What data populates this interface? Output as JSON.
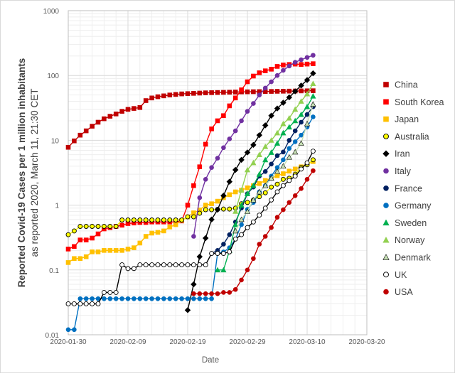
{
  "chart_data": {
    "type": "line",
    "y_scale": "log",
    "ylim": [
      0.01,
      1000
    ],
    "y_ticks": [
      "0.01",
      "0.1",
      "1",
      "10",
      "100",
      "1000"
    ],
    "x_ticks": [
      "2020-01-30",
      "2020-02-09",
      "2020-02-19",
      "2020-02-29",
      "2020-03-10",
      "2020-03-20"
    ],
    "xlim_days": [
      0,
      50
    ],
    "x_start_date": "2020-01-30",
    "xlabel": "Date",
    "ylabel_line1": "Reported Covid-19 Cases per 1 million inhabitants",
    "ylabel_line2": "as reported 2020, March 11, 21:30 CET",
    "grid": true,
    "legend_position": "right",
    "series": [
      {
        "name": "China",
        "color": "#c00000",
        "marker": "square",
        "filled": true,
        "days": [
          0,
          1,
          2,
          3,
          4,
          5,
          6,
          7,
          8,
          9,
          10,
          11,
          12,
          13,
          14,
          15,
          16,
          17,
          18,
          19,
          20,
          21,
          22,
          23,
          24,
          25,
          26,
          27,
          28,
          29,
          30,
          31,
          32,
          33,
          34,
          35,
          36,
          37,
          38,
          39,
          40,
          41
        ],
        "values": [
          7.8,
          9.8,
          12,
          14,
          16.5,
          19,
          21.5,
          23.5,
          25.5,
          28,
          30,
          31,
          32,
          41,
          45,
          47,
          48.5,
          50,
          51,
          52,
          52.5,
          53,
          53.5,
          54,
          54.3,
          54.6,
          54.9,
          55.2,
          55.5,
          55.8,
          56,
          56.2,
          56.4,
          56.6,
          56.8,
          57,
          57.2,
          57.4,
          57.6,
          57.8,
          58,
          58.2
        ]
      },
      {
        "name": "South Korea",
        "color": "#ff0000",
        "marker": "square",
        "filled": true,
        "days": [
          0,
          1,
          2,
          3,
          4,
          5,
          6,
          7,
          8,
          9,
          10,
          11,
          12,
          13,
          14,
          15,
          16,
          17,
          18,
          19,
          20,
          21,
          22,
          23,
          24,
          25,
          26,
          27,
          28,
          29,
          30,
          31,
          32,
          33,
          34,
          35,
          36,
          37,
          38,
          39,
          40,
          41
        ],
        "values": [
          0.21,
          0.23,
          0.29,
          0.29,
          0.31,
          0.36,
          0.43,
          0.45,
          0.47,
          0.49,
          0.52,
          0.53,
          0.54,
          0.54,
          0.55,
          0.55,
          0.55,
          0.55,
          0.55,
          0.57,
          1,
          2,
          3.9,
          8.7,
          15,
          20,
          24,
          34,
          45,
          60,
          80,
          98,
          110,
          118,
          125,
          138,
          145,
          148,
          150,
          148,
          150,
          152
        ]
      },
      {
        "name": "Japan",
        "color": "#ffc000",
        "marker": "square",
        "filled": true,
        "days": [
          0,
          1,
          2,
          3,
          4,
          5,
          6,
          7,
          8,
          9,
          10,
          11,
          12,
          13,
          14,
          15,
          16,
          17,
          18,
          19,
          20,
          21,
          22,
          23,
          24,
          25,
          26,
          27,
          28,
          29,
          30,
          31,
          32,
          33,
          34,
          35,
          36,
          37,
          38,
          39,
          40,
          41
        ],
        "values": [
          0.13,
          0.15,
          0.15,
          0.16,
          0.19,
          0.19,
          0.2,
          0.2,
          0.2,
          0.2,
          0.21,
          0.22,
          0.26,
          0.33,
          0.37,
          0.38,
          0.4,
          0.46,
          0.5,
          0.58,
          0.66,
          0.76,
          0.84,
          1,
          1.05,
          1.15,
          1.3,
          1.45,
          1.6,
          1.7,
          1.85,
          2,
          2.15,
          2.4,
          2.6,
          2.85,
          3.05,
          3.35,
          3.6,
          3.9,
          4.3,
          4.7
        ]
      },
      {
        "name": "Australia",
        "color": "#ffff00",
        "marker": "circle",
        "filled": true,
        "days": [
          0,
          1,
          2,
          3,
          4,
          5,
          6,
          7,
          8,
          9,
          10,
          11,
          12,
          13,
          14,
          15,
          16,
          17,
          18,
          19,
          20,
          21,
          22,
          23,
          24,
          25,
          26,
          27,
          28,
          29,
          30,
          31,
          32,
          33,
          34,
          35,
          36,
          37,
          38,
          39,
          40,
          41
        ],
        "values": [
          0.35,
          0.4,
          0.47,
          0.47,
          0.47,
          0.47,
          0.47,
          0.47,
          0.47,
          0.59,
          0.59,
          0.59,
          0.59,
          0.59,
          0.59,
          0.59,
          0.59,
          0.59,
          0.59,
          0.59,
          0.66,
          0.66,
          0.75,
          0.85,
          0.85,
          0.86,
          0.87,
          0.87,
          0.9,
          1.05,
          1.1,
          1.2,
          1.35,
          1.55,
          1.9,
          2.1,
          2.5,
          2.6,
          3,
          3.8,
          4.2,
          5
        ]
      },
      {
        "name": "Iran",
        "color": "#000000",
        "marker": "diamond",
        "filled": true,
        "days": [
          20,
          21,
          22,
          23,
          24,
          25,
          26,
          27,
          28,
          29,
          30,
          31,
          32,
          33,
          34,
          35,
          36,
          37,
          38,
          39,
          40,
          41
        ],
        "values": [
          0.024,
          0.06,
          0.16,
          0.31,
          0.6,
          0.85,
          1.4,
          2.3,
          3.5,
          5,
          6.5,
          8.5,
          12,
          17,
          24,
          31,
          38,
          46,
          57,
          70,
          85,
          108
        ]
      },
      {
        "name": "Italy",
        "color": "#7030a0",
        "marker": "circle",
        "filled": true,
        "days": [
          21,
          22,
          23,
          24,
          25,
          26,
          27,
          28,
          29,
          30,
          31,
          32,
          33,
          34,
          35,
          36,
          37,
          38,
          39,
          40,
          41
        ],
        "values": [
          0.33,
          1.3,
          2.5,
          3.8,
          5.3,
          7.7,
          10.5,
          14,
          20,
          28,
          37,
          50,
          64,
          80,
          100,
          120,
          140,
          160,
          175,
          190,
          205
        ]
      },
      {
        "name": "France",
        "color": "#002060",
        "marker": "circle",
        "filled": true,
        "days": [
          24,
          25,
          26,
          27,
          28,
          29,
          30,
          31,
          32,
          33,
          34,
          35,
          36,
          37,
          38,
          39,
          40,
          41
        ],
        "values": [
          0.18,
          0.2,
          0.25,
          0.35,
          0.55,
          0.9,
          1.5,
          1.9,
          2.8,
          3.3,
          4.3,
          5.8,
          6.6,
          10,
          14,
          19,
          25,
          33
        ]
      },
      {
        "name": "Germany",
        "color": "#0070c0",
        "marker": "circle",
        "filled": true,
        "days": [
          0,
          1,
          2,
          3,
          4,
          5,
          6,
          7,
          8,
          9,
          10,
          11,
          12,
          13,
          14,
          15,
          16,
          17,
          18,
          19,
          20,
          21,
          22,
          23,
          24,
          25,
          26,
          27,
          28,
          29,
          30,
          31,
          32,
          33,
          34,
          35,
          36,
          37,
          38,
          39,
          40,
          41
        ],
        "values": [
          0.012,
          0.012,
          0.036,
          0.036,
          0.036,
          0.036,
          0.036,
          0.036,
          0.036,
          0.036,
          0.036,
          0.036,
          0.036,
          0.036,
          0.036,
          0.036,
          0.036,
          0.036,
          0.036,
          0.036,
          0.036,
          0.036,
          0.036,
          0.036,
          0.036,
          0.18,
          0.19,
          0.22,
          0.3,
          0.5,
          0.86,
          1.1,
          1.6,
          2,
          2.8,
          3.8,
          5,
          7.5,
          9.5,
          12,
          16,
          23
        ]
      },
      {
        "name": "Sweden",
        "color": "#00b050",
        "marker": "triangle",
        "filled": true,
        "days": [
          25,
          26,
          27,
          28,
          29,
          30,
          31,
          32,
          33,
          34,
          35,
          36,
          37,
          38,
          39,
          40,
          41
        ],
        "values": [
          0.1,
          0.1,
          0.2,
          0.5,
          1,
          1.5,
          2,
          3,
          5,
          6.5,
          9,
          13,
          16,
          20,
          25,
          33,
          48
        ]
      },
      {
        "name": "Norway",
        "color": "#92d050",
        "marker": "triangle",
        "filled": true,
        "days": [
          28,
          29,
          30,
          31,
          32,
          33,
          34,
          35,
          36,
          37,
          38,
          39,
          40,
          41
        ],
        "values": [
          0.8,
          1.7,
          3.5,
          4.5,
          6,
          8,
          10,
          13,
          18,
          22,
          30,
          40,
          52,
          75
        ]
      },
      {
        "name": "Denmark",
        "color": "#c6e0b4",
        "marker": "triangle",
        "filled": true,
        "days": [
          28,
          29,
          30,
          31,
          32,
          33,
          34,
          35,
          36,
          37,
          38,
          39,
          40,
          41
        ],
        "values": [
          0.4,
          0.6,
          0.8,
          1.2,
          1.6,
          2,
          2.6,
          3.3,
          4,
          5.5,
          6.6,
          9,
          18,
          36
        ]
      },
      {
        "name": "UK",
        "color": "#000000",
        "marker": "circle",
        "filled": false,
        "days": [
          0,
          1,
          2,
          3,
          4,
          5,
          6,
          7,
          8,
          9,
          10,
          11,
          12,
          13,
          14,
          15,
          16,
          17,
          18,
          19,
          20,
          21,
          22,
          23,
          24,
          25,
          26,
          27,
          28,
          29,
          30,
          31,
          32,
          33,
          34,
          35,
          36,
          37,
          38,
          39,
          40,
          41
        ],
        "values": [
          0.03,
          0.03,
          0.03,
          0.03,
          0.03,
          0.03,
          0.045,
          0.045,
          0.045,
          0.12,
          0.105,
          0.105,
          0.12,
          0.12,
          0.12,
          0.12,
          0.12,
          0.12,
          0.12,
          0.12,
          0.12,
          0.12,
          0.12,
          0.12,
          0.18,
          0.18,
          0.18,
          0.19,
          0.3,
          0.35,
          0.45,
          0.55,
          0.7,
          0.9,
          1.2,
          1.6,
          2,
          2.4,
          2.8,
          3.6,
          4.5,
          6.8
        ]
      },
      {
        "name": "USA",
        "color": "#c00000",
        "marker": "circle",
        "filled": true,
        "days": [
          21,
          22,
          23,
          24,
          25,
          26,
          27,
          28,
          29,
          30,
          31,
          32,
          33,
          34,
          35,
          36,
          37,
          38,
          39,
          40,
          41
        ],
        "values": [
          0.043,
          0.043,
          0.043,
          0.043,
          0.043,
          0.045,
          0.045,
          0.05,
          0.07,
          0.1,
          0.15,
          0.25,
          0.33,
          0.45,
          0.65,
          0.85,
          1.1,
          1.4,
          1.8,
          2.5,
          3.4
        ]
      }
    ]
  }
}
